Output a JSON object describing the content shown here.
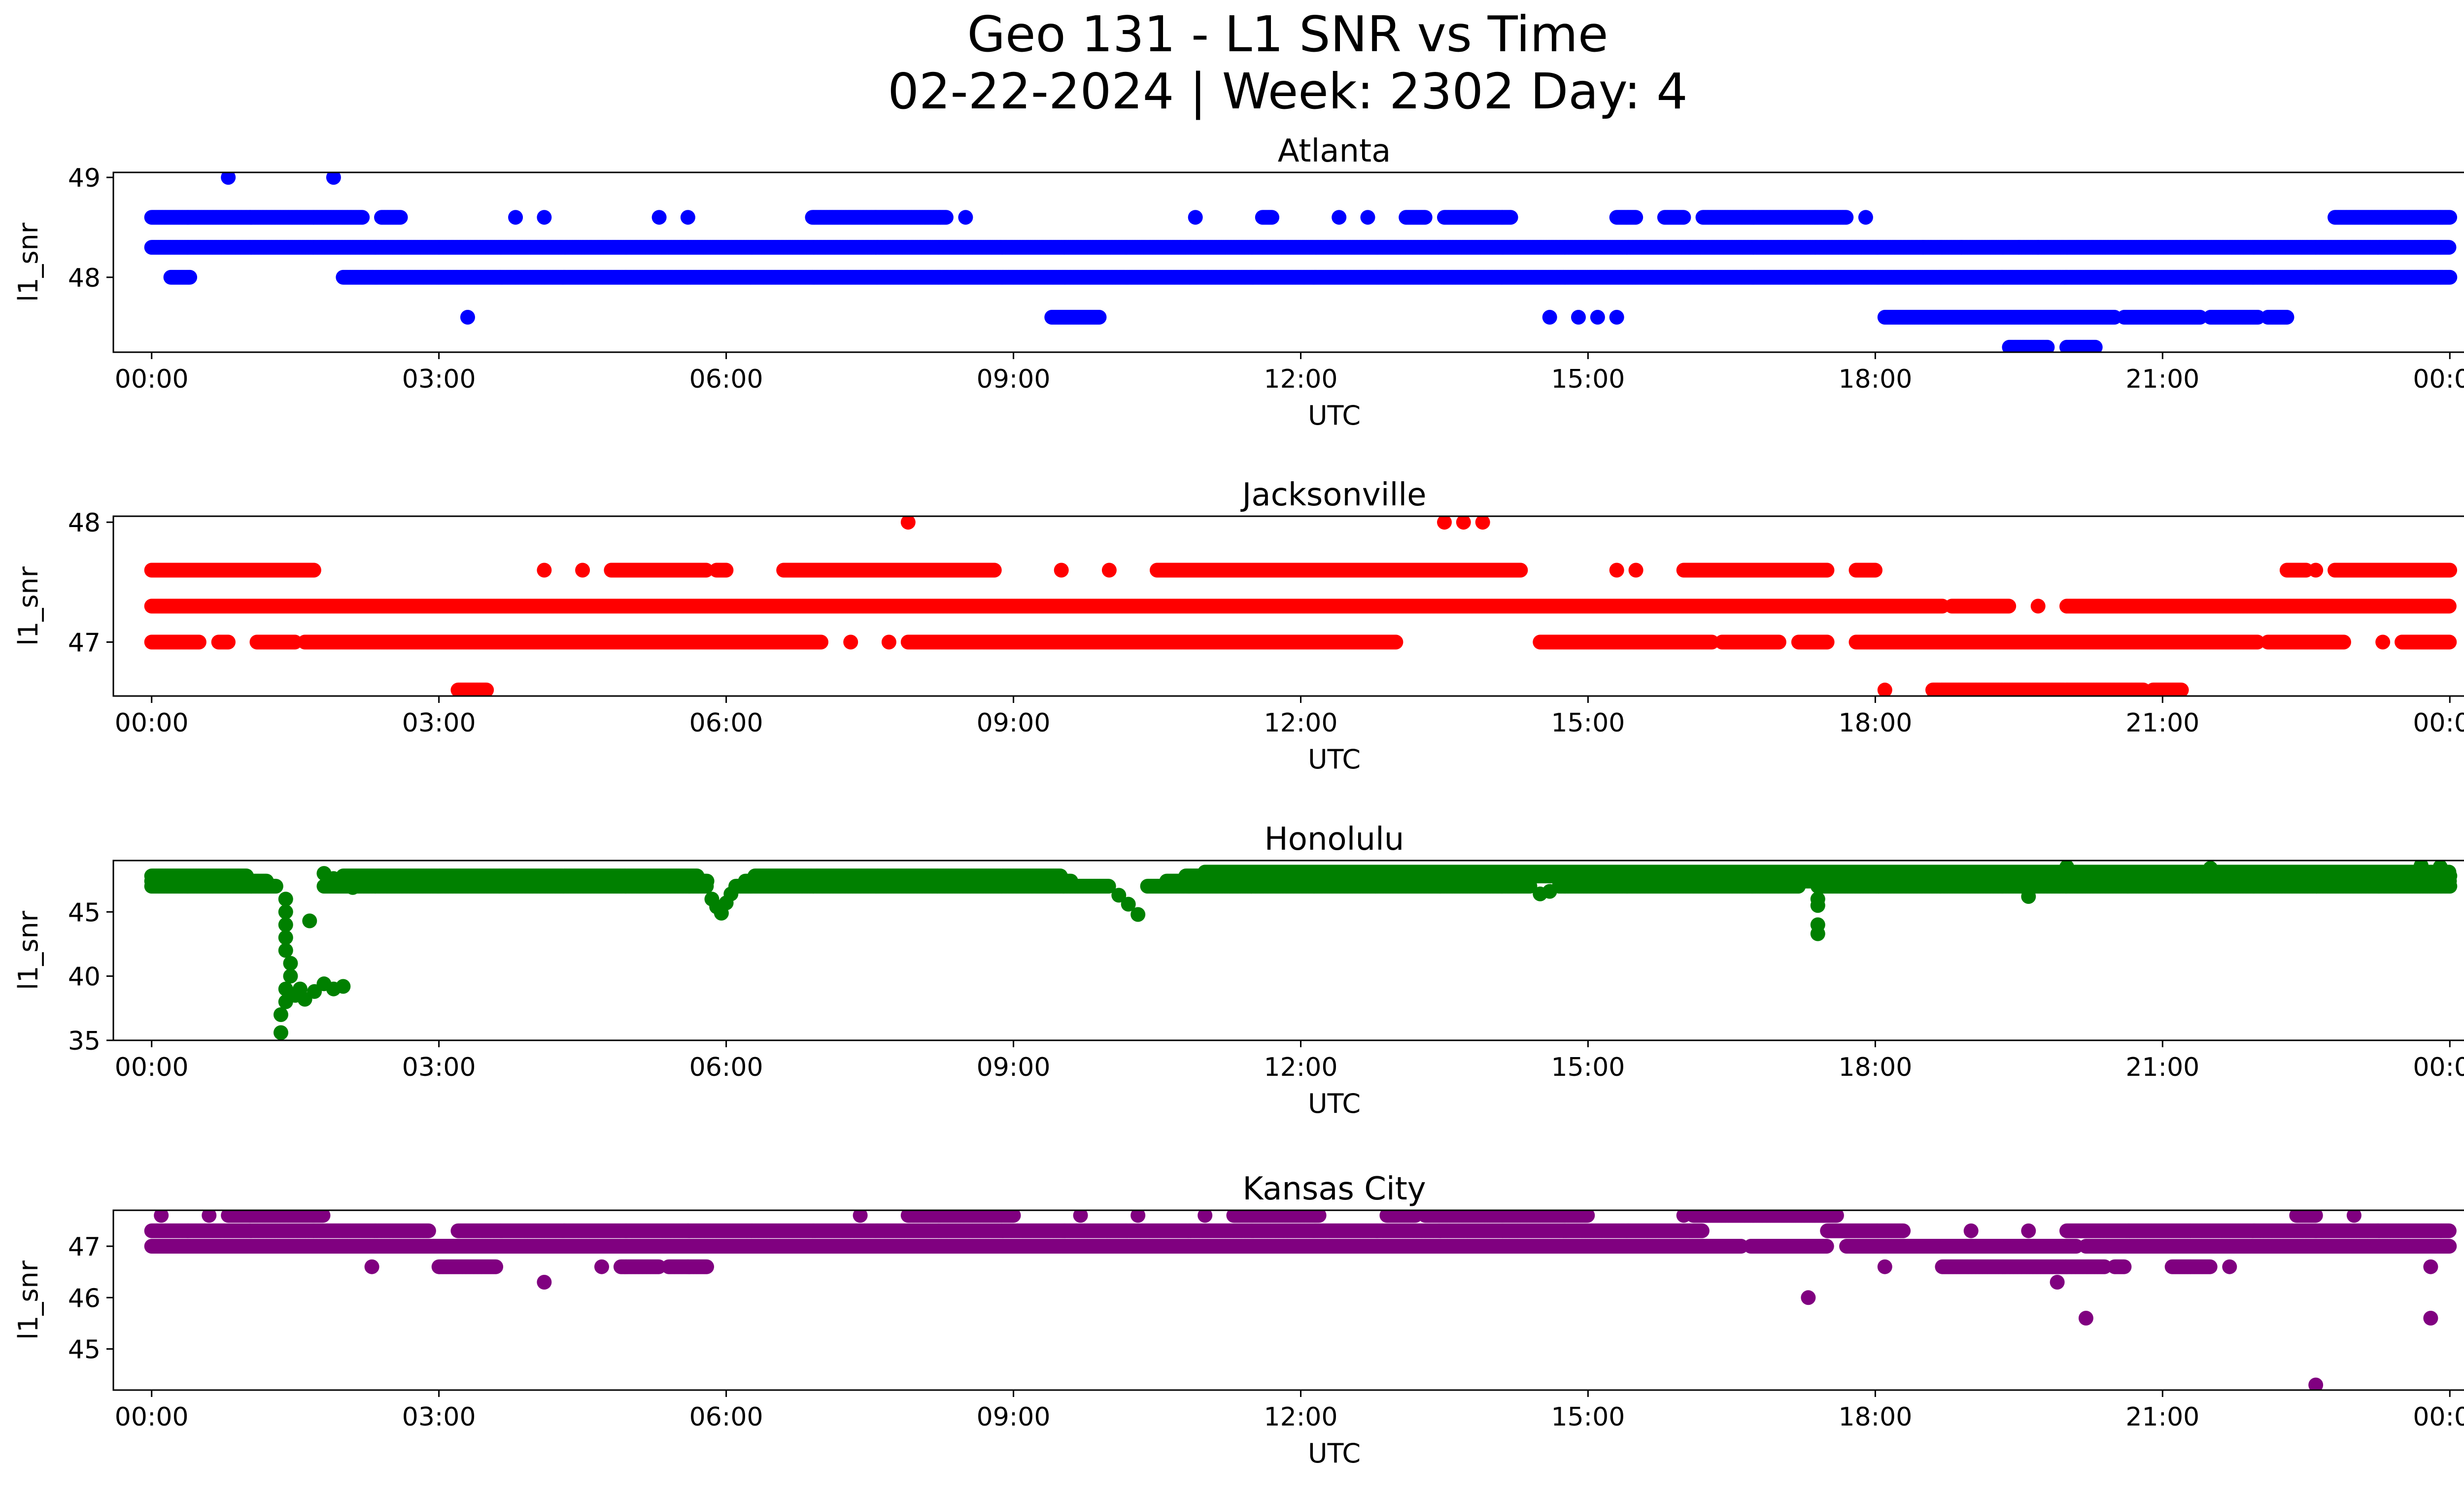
{
  "figure": {
    "title_line1": "Geo 131 - L1 SNR vs Time",
    "title_line2": "02-22-2024 | Week: 2302 Day: 4"
  },
  "chart_data": [
    {
      "type": "scatter",
      "title": "Atlanta",
      "xlabel": "UTC",
      "ylabel": "l1_snr",
      "color": "#0000ff",
      "x_unit": "hours since 00:00 UTC",
      "x_ticks": [
        "00:00",
        "03:00",
        "06:00",
        "09:00",
        "12:00",
        "15:00",
        "18:00",
        "21:00",
        "00:00"
      ],
      "xlim": [
        -0.4,
        25.1
      ],
      "ylim": [
        47.25,
        49.05
      ],
      "y_ticks": [
        48,
        49
      ],
      "bands": [
        {
          "y": 48.3,
          "ranges": [
            [
              0,
              24
            ]
          ]
        },
        {
          "y": 48.0,
          "ranges": [
            [
              0.2,
              0.4
            ],
            [
              2.0,
              24
            ]
          ]
        },
        {
          "y": 48.6,
          "ranges": [
            [
              0,
              2.2
            ],
            [
              2.4,
              2.6
            ],
            [
              6.9,
              8.3
            ],
            [
              8.5,
              8.5
            ],
            [
              11.6,
              11.7
            ],
            [
              13.1,
              13.3
            ],
            [
              13.5,
              14.2
            ],
            [
              15.3,
              15.5
            ],
            [
              15.8,
              16.0
            ],
            [
              16.2,
              17.7
            ],
            [
              17.9,
              17.9
            ],
            [
              22.8,
              24
            ]
          ]
        },
        {
          "y": 47.6,
          "ranges": [
            [
              9.4,
              9.9
            ],
            [
              18.1,
              20.5
            ],
            [
              20.6,
              21.4
            ],
            [
              21.5,
              22.0
            ],
            [
              22.1,
              22.3
            ]
          ]
        },
        {
          "y": 47.3,
          "ranges": [
            [
              19.4,
              19.8
            ],
            [
              20.0,
              20.3
            ]
          ]
        }
      ],
      "points": [
        [
          0.8,
          49.0
        ],
        [
          1.9,
          49.0
        ],
        [
          3.3,
          47.6
        ],
        [
          3.8,
          48.6
        ],
        [
          4.1,
          48.6
        ],
        [
          5.3,
          48.6
        ],
        [
          5.6,
          48.6
        ],
        [
          10.9,
          48.6
        ],
        [
          12.4,
          48.6
        ],
        [
          12.7,
          48.6
        ],
        [
          14.6,
          47.6
        ],
        [
          14.9,
          47.6
        ],
        [
          15.1,
          47.6
        ],
        [
          15.3,
          47.6
        ],
        [
          18.5,
          48.3
        ],
        [
          18.9,
          48.3
        ],
        [
          19.5,
          48.3
        ],
        [
          19.7,
          48.3
        ]
      ]
    },
    {
      "type": "scatter",
      "title": "Jacksonville",
      "xlabel": "UTC",
      "ylabel": "l1_snr",
      "color": "#ff0000",
      "x_unit": "hours since 00:00 UTC",
      "x_ticks": [
        "00:00",
        "03:00",
        "06:00",
        "09:00",
        "12:00",
        "15:00",
        "18:00",
        "21:00",
        "00:00"
      ],
      "xlim": [
        -0.4,
        25.1
      ],
      "ylim": [
        46.55,
        48.05
      ],
      "y_ticks": [
        47,
        48
      ],
      "bands": [
        {
          "y": 47.3,
          "ranges": [
            [
              0,
              18.7
            ],
            [
              18.8,
              19.4
            ],
            [
              20.0,
              24
            ]
          ]
        },
        {
          "y": 47.0,
          "ranges": [
            [
              0,
              0.5
            ],
            [
              0.7,
              0.8
            ],
            [
              1.1,
              1.5
            ],
            [
              1.6,
              7.0
            ],
            [
              7.9,
              13.0
            ],
            [
              14.5,
              16.3
            ],
            [
              16.4,
              17.0
            ],
            [
              17.2,
              17.5
            ],
            [
              17.8,
              22.0
            ],
            [
              22.1,
              22.9
            ],
            [
              23.5,
              24
            ]
          ]
        },
        {
          "y": 47.6,
          "ranges": [
            [
              0,
              1.7
            ],
            [
              4.8,
              5.8
            ],
            [
              5.9,
              6.0
            ],
            [
              6.6,
              8.8
            ],
            [
              10.5,
              14.3
            ],
            [
              16.0,
              17.5
            ],
            [
              17.8,
              18.0
            ],
            [
              22.3,
              22.5
            ],
            [
              22.8,
              24
            ]
          ]
        },
        {
          "y": 46.6,
          "ranges": [
            [
              3.2,
              3.5
            ],
            [
              18.1,
              18.1
            ],
            [
              18.6,
              20.8
            ],
            [
              20.9,
              21.2
            ]
          ]
        }
      ],
      "points": [
        [
          7.9,
          48.0
        ],
        [
          13.5,
          48.0
        ],
        [
          13.7,
          48.0
        ],
        [
          13.9,
          48.0
        ],
        [
          4.1,
          47.6
        ],
        [
          4.5,
          47.6
        ],
        [
          9.5,
          47.6
        ],
        [
          10.0,
          47.6
        ],
        [
          15.3,
          47.6
        ],
        [
          15.5,
          47.6
        ],
        [
          22.6,
          47.6
        ],
        [
          7.3,
          47.0
        ],
        [
          7.7,
          47.0
        ],
        [
          23.3,
          47.0
        ],
        [
          19.7,
          47.3
        ]
      ]
    },
    {
      "type": "scatter",
      "title": "Honolulu",
      "xlabel": "UTC",
      "ylabel": "l1_snr",
      "color": "#008000",
      "x_unit": "hours since 00:00 UTC",
      "x_ticks": [
        "00:00",
        "03:00",
        "06:00",
        "09:00",
        "12:00",
        "15:00",
        "18:00",
        "21:00",
        "00:00"
      ],
      "xlim": [
        -0.4,
        25.1
      ],
      "ylim": [
        35,
        49
      ],
      "y_ticks": [
        35,
        40,
        45
      ],
      "bands": [
        {
          "y": 47.4,
          "ranges": [
            [
              0,
              1.2
            ],
            [
              2.4,
              5.8
            ],
            [
              6.2,
              9.6
            ],
            [
              10.6,
              14.3
            ],
            [
              14.8,
              24
            ]
          ]
        },
        {
          "y": 47.0,
          "ranges": [
            [
              0,
              1.3
            ],
            [
              1.8,
              5.8
            ],
            [
              6.1,
              10.0
            ],
            [
              10.4,
              14.4
            ],
            [
              14.7,
              17.2
            ],
            [
              17.4,
              24
            ]
          ]
        },
        {
          "y": 47.8,
          "ranges": [
            [
              0,
              1.0
            ],
            [
              2.0,
              5.7
            ],
            [
              6.3,
              9.5
            ],
            [
              10.8,
              24
            ]
          ]
        },
        {
          "y": 48.1,
          "ranges": [
            [
              11.0,
              24
            ]
          ]
        }
      ],
      "points": [
        [
          1.4,
          46.0
        ],
        [
          1.4,
          45.0
        ],
        [
          1.4,
          44.0
        ],
        [
          1.4,
          43.0
        ],
        [
          1.4,
          42.0
        ],
        [
          1.45,
          41.0
        ],
        [
          1.45,
          40.0
        ],
        [
          1.4,
          39.0
        ],
        [
          1.4,
          38.0
        ],
        [
          1.35,
          37.0
        ],
        [
          1.35,
          35.6
        ],
        [
          1.5,
          38.5
        ],
        [
          1.55,
          39.0
        ],
        [
          1.6,
          38.2
        ],
        [
          1.7,
          38.8
        ],
        [
          1.8,
          39.4
        ],
        [
          1.9,
          39.0
        ],
        [
          2.0,
          39.2
        ],
        [
          1.65,
          44.3
        ],
        [
          1.8,
          48.0
        ],
        [
          1.9,
          47.6
        ],
        [
          2.1,
          46.9
        ],
        [
          5.85,
          46.0
        ],
        [
          5.9,
          45.4
        ],
        [
          5.95,
          44.9
        ],
        [
          6.0,
          45.7
        ],
        [
          6.05,
          46.4
        ],
        [
          10.1,
          46.3
        ],
        [
          10.2,
          45.6
        ],
        [
          10.3,
          44.8
        ],
        [
          14.5,
          46.4
        ],
        [
          14.6,
          46.6
        ],
        [
          17.4,
          46.0
        ],
        [
          17.4,
          45.5
        ],
        [
          17.4,
          44.0
        ],
        [
          17.4,
          43.3
        ],
        [
          19.6,
          46.2
        ],
        [
          20.0,
          48.5
        ],
        [
          21.5,
          48.4
        ],
        [
          23.7,
          48.6
        ],
        [
          23.9,
          48.5
        ]
      ]
    },
    {
      "type": "scatter",
      "title": "Kansas City",
      "xlabel": "UTC",
      "ylabel": "l1_snr",
      "color": "#800080",
      "x_unit": "hours since 00:00 UTC",
      "x_ticks": [
        "00:00",
        "03:00",
        "06:00",
        "09:00",
        "12:00",
        "15:00",
        "18:00",
        "21:00",
        "00:00"
      ],
      "xlim": [
        -0.4,
        25.1
      ],
      "ylim": [
        44.2,
        47.7
      ],
      "y_ticks": [
        45,
        46,
        47
      ],
      "bands": [
        {
          "y": 47.0,
          "ranges": [
            [
              0,
              16.6
            ],
            [
              16.7,
              17.5
            ],
            [
              17.7,
              20.1
            ],
            [
              20.2,
              24
            ]
          ]
        },
        {
          "y": 47.3,
          "ranges": [
            [
              0,
              2.9
            ],
            [
              3.2,
              16.2
            ],
            [
              17.5,
              18.3
            ],
            [
              20.0,
              24
            ]
          ]
        },
        {
          "y": 47.6,
          "ranges": [
            [
              0.8,
              1.8
            ],
            [
              7.9,
              9.0
            ],
            [
              11.3,
              12.2
            ],
            [
              12.9,
              13.2
            ],
            [
              13.3,
              15.0
            ],
            [
              16.1,
              17.6
            ],
            [
              22.4,
              22.6
            ]
          ]
        },
        {
          "y": 46.6,
          "ranges": [
            [
              3.0,
              3.6
            ],
            [
              4.9,
              5.3
            ],
            [
              5.4,
              5.8
            ],
            [
              18.7,
              20.4
            ],
            [
              20.5,
              20.6
            ],
            [
              21.1,
              21.5
            ]
          ]
        }
      ],
      "points": [
        [
          0.1,
          47.6
        ],
        [
          0.6,
          47.6
        ],
        [
          7.4,
          47.6
        ],
        [
          9.7,
          47.6
        ],
        [
          10.3,
          47.6
        ],
        [
          11.0,
          47.6
        ],
        [
          16.0,
          47.6
        ],
        [
          2.3,
          46.6
        ],
        [
          4.7,
          46.6
        ],
        [
          23.8,
          46.6
        ],
        [
          21.7,
          46.6
        ],
        [
          4.1,
          46.3
        ],
        [
          19.9,
          46.3
        ],
        [
          17.3,
          46.0
        ],
        [
          20.2,
          45.6
        ],
        [
          23.8,
          45.6
        ],
        [
          22.6,
          44.3
        ],
        [
          18.1,
          46.6
        ],
        [
          19.0,
          47.3
        ],
        [
          19.6,
          47.3
        ],
        [
          23.0,
          47.6
        ]
      ]
    }
  ]
}
